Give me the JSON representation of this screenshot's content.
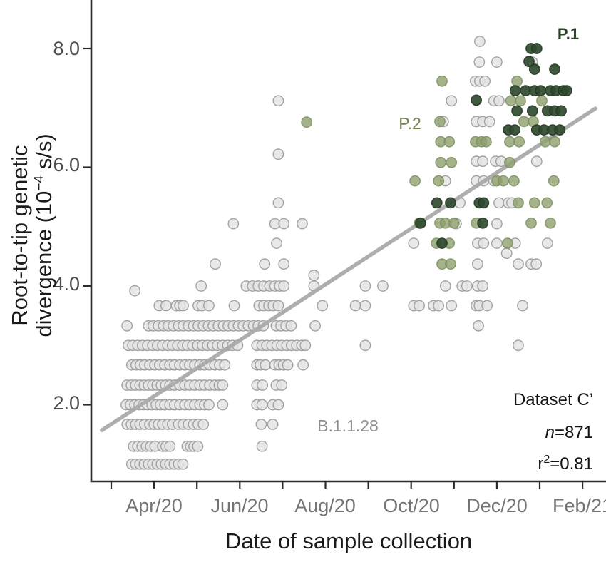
{
  "axes": {
    "x": {
      "label": "Date of sample collection",
      "tick_labels": [
        "Apr/20",
        "Jun/20",
        "Aug/20",
        "Oct/20",
        "Dec/20",
        "Feb/21"
      ]
    },
    "y": {
      "label_line1": "Root-to-tip genetic",
      "label_line2_prefix": "divergence (10",
      "label_line2_sup": "−4",
      "label_line2_suffix": " s/s)",
      "tick_labels": [
        "8.0",
        "6.0",
        "4.0",
        "2.0"
      ]
    }
  },
  "annotations": {
    "p1": "P.1",
    "p2": "P.2",
    "lineage": "B.1.1.28",
    "dataset": "Dataset C’",
    "n_italic": "n",
    "n_rest": "=871",
    "r_base": "r",
    "r_sup": "2",
    "r_rest": "=0.81"
  },
  "chart_data": {
    "type": "scatter",
    "title": "",
    "xlabel": "Date of sample collection",
    "ylabel": "Root-to-tip genetic divergence (10^-4 s/s)",
    "x_unit": "months since Mar/2020 tick (0 = Mar/20, 1 = Apr/20 ... 11 = Feb/21)",
    "y_unit": "10^-4 substitutions/site",
    "xlim": [
      -0.47,
      11.55
    ],
    "ylim": [
      0.72,
      8.82
    ],
    "x_month_ticks": [
      0,
      1,
      2,
      3,
      4,
      5,
      6,
      7,
      8,
      9,
      10,
      11
    ],
    "x_labeled_ticks": [
      1,
      3,
      5,
      7,
      9,
      11
    ],
    "y_ticks": [
      8.0,
      6.0,
      4.0,
      2.0
    ],
    "grid": false,
    "legend": "inline text labels (P.1, P.2, B.1.1.28)",
    "stats": {
      "dataset": "Dataset C'",
      "n": 871,
      "r2": 0.81
    },
    "trend_line": {
      "x1": -0.22,
      "v1": 1.57,
      "x2": 11.3,
      "v2": 6.99,
      "color": "#aaaaaa"
    },
    "series": [
      {
        "name": "B.1.1.28",
        "marker": "open-circle",
        "fill": "#e4e4e4",
        "stroke": "#999999",
        "fill_opacity": 0.85,
        "stroke_opacity": 0.9,
        "bands": [
          {
            "v": 1.0,
            "m": [
              0.48,
              0.57,
              0.67,
              0.77,
              0.87,
              0.97,
              1.07,
              1.17,
              1.27,
              1.37,
              1.47,
              1.57,
              1.67
            ]
          },
          {
            "v": 1.3,
            "m": [
              0.52,
              0.62,
              0.72,
              0.82,
              0.92,
              1.02,
              1.2,
              1.28,
              1.37,
              1.77,
              1.85,
              1.93,
              2.02,
              3.52
            ]
          },
          {
            "v": 1.67,
            "m": [
              0.37,
              0.47,
              0.57,
              0.67,
              0.78,
              0.9,
              1.0,
              1.1,
              1.2,
              1.32,
              1.43,
              1.57,
              1.68,
              1.8,
              1.92,
              2.03,
              2.15,
              3.5,
              3.77
            ]
          },
          {
            "v": 2.0,
            "m": [
              0.35,
              0.45,
              0.55,
              0.65,
              0.75,
              0.85,
              0.95,
              1.05,
              1.15,
              1.25,
              1.37,
              1.48,
              1.6,
              1.72,
              1.83,
              1.95,
              2.07,
              2.18,
              2.28,
              2.6,
              3.4,
              3.52,
              3.77,
              3.9
            ]
          },
          {
            "v": 2.33,
            "m": [
              0.37,
              0.47,
              0.57,
              0.67,
              0.77,
              0.87,
              0.97,
              1.07,
              1.17,
              1.27,
              1.37,
              1.48,
              1.6,
              1.72,
              1.83,
              1.95,
              2.07,
              2.18,
              2.3,
              2.42,
              2.52,
              2.6,
              3.4,
              3.53,
              3.85,
              3.98
            ]
          },
          {
            "v": 2.67,
            "m": [
              0.48,
              0.58,
              0.68,
              0.78,
              0.9,
              1.02,
              1.13,
              1.25,
              1.37,
              1.48,
              1.6,
              1.72,
              1.83,
              1.95,
              2.07,
              2.18,
              2.3,
              2.42,
              2.53,
              2.65,
              3.4,
              3.48,
              3.6,
              3.82,
              3.92,
              4.02,
              4.12,
              4.48
            ]
          },
          {
            "v": 3.0,
            "m": [
              0.4,
              0.5,
              0.62,
              0.73,
              0.85,
              0.97,
              1.08,
              1.2,
              1.32,
              1.43,
              1.55,
              1.67,
              1.78,
              1.9,
              2.02,
              2.13,
              2.25,
              2.37,
              2.48,
              2.6,
              2.72,
              2.83,
              2.95,
              3.4,
              3.52,
              3.63,
              3.75,
              3.87,
              3.98,
              4.1,
              4.21,
              4.33,
              4.45,
              4.53,
              5.93,
              9.5
            ]
          },
          {
            "v": 3.33,
            "m": [
              0.37,
              0.87,
              0.98,
              1.1,
              1.22,
              1.33,
              1.45,
              1.57,
              1.68,
              1.8,
              1.92,
              2.03,
              2.15,
              2.27,
              2.38,
              2.5,
              2.62,
              2.73,
              2.85,
              2.97,
              3.08,
              3.2,
              3.32,
              3.43,
              3.55,
              3.85,
              3.96,
              4.08,
              4.2,
              4.76,
              8.57
            ]
          },
          {
            "v": 3.67,
            "m": [
              1.12,
              1.28,
              1.52,
              1.6,
              1.68,
              2.03,
              2.12,
              2.28,
              2.87,
              3.45,
              3.56,
              3.68,
              3.78,
              3.9,
              4.93,
              5.7,
              5.93,
              7.06,
              7.19,
              7.52,
              7.64,
              7.94,
              8.52,
              8.59,
              8.77,
              9.6
            ]
          },
          {
            "v": 3.92,
            "m": [
              0.55
            ]
          },
          {
            "v": 4.0,
            "m": [
              2.1,
              3.15,
              3.3,
              3.43,
              3.56,
              3.7,
              3.82,
              3.93,
              4.03,
              4.73,
              5.93,
              6.34,
              7.8,
              8.19,
              8.3,
              8.55,
              8.67
            ]
          },
          {
            "v": 4.18,
            "m": [
              4.73
            ]
          },
          {
            "v": 4.37,
            "m": [
              2.43,
              3.58,
              4.03,
              8.55,
              9.5,
              9.8,
              9.92
            ]
          },
          {
            "v": 4.55,
            "m": [
              9.23
            ]
          },
          {
            "v": 4.72,
            "m": [
              3.86,
              7.06,
              8.55,
              8.69,
              9.0,
              9.43,
              10.18
            ]
          },
          {
            "v": 5.05,
            "m": [
              2.85,
              3.82,
              4.03,
              4.46,
              8.05,
              9.0
            ]
          },
          {
            "v": 5.4,
            "m": [
              3.9,
              8.14,
              9.05,
              9.27,
              9.35
            ]
          },
          {
            "v": 5.77,
            "m": [
              7.8,
              8.52,
              8.69,
              8.93
            ]
          },
          {
            "v": 6.1,
            "m": [
              8.52,
              8.67,
              8.97,
              9.1,
              9.93
            ]
          },
          {
            "v": 6.22,
            "m": [
              3.9
            ]
          },
          {
            "v": 6.77,
            "m": [
              7.75,
              8.52,
              8.67,
              8.83
            ]
          },
          {
            "v": 7.12,
            "m": [
              3.9,
              7.94,
              8.93,
              9.05
            ]
          },
          {
            "v": 7.45,
            "m": [
              8.5,
              8.6,
              8.72
            ]
          },
          {
            "v": 7.77,
            "m": [
              8.59,
              9.0,
              9.83
            ]
          },
          {
            "v": 8.12,
            "m": [
              8.6
            ]
          }
        ]
      },
      {
        "name": "P.2",
        "marker": "filled-circle",
        "fill": "#8fa06e",
        "stroke": "#79895a",
        "fill_opacity": 0.8,
        "stroke_opacity": 0.8,
        "bands": [
          {
            "v": 4.37,
            "m": [
              7.72,
              7.92
            ]
          },
          {
            "v": 4.72,
            "m": [
              7.59,
              7.89,
              9.25
            ]
          },
          {
            "v": 5.06,
            "m": [
              7.19,
              7.67,
              7.8,
              8.0,
              8.52,
              9.8,
              10.25
            ]
          },
          {
            "v": 5.4,
            "m": [
              9.5,
              9.88,
              10.17
            ]
          },
          {
            "v": 5.77,
            "m": [
              7.09,
              7.64,
              9.0,
              9.15,
              9.4,
              10.33
            ]
          },
          {
            "v": 6.08,
            "m": [
              7.69,
              7.94,
              9.3
            ]
          },
          {
            "v": 6.43,
            "m": [
              7.69,
              7.89,
              8.5,
              8.64,
              8.75,
              9.3,
              9.52,
              10.13,
              10.35
            ]
          },
          {
            "v": 6.76,
            "m": [
              4.56
            ]
          },
          {
            "v": 6.77,
            "m": [
              7.67,
              9.63,
              9.85
            ]
          },
          {
            "v": 7.12,
            "m": [
              9.33,
              9.55,
              10.05
            ]
          },
          {
            "v": 7.45,
            "m": [
              7.72,
              9.47
            ]
          }
        ]
      },
      {
        "name": "P.1",
        "marker": "filled-circle",
        "fill": "#2f4a2f",
        "stroke": "#24391f",
        "fill_opacity": 0.92,
        "stroke_opacity": 0.9,
        "bands": [
          {
            "v": 4.72,
            "m": [
              7.72
            ]
          },
          {
            "v": 5.06,
            "m": [
              7.22,
              8.67
            ]
          },
          {
            "v": 5.4,
            "m": [
              7.6,
              7.92,
              8.59,
              8.69
            ]
          },
          {
            "v": 6.63,
            "m": [
              9.27,
              9.42,
              9.93,
              10.1,
              10.3,
              10.47
            ]
          },
          {
            "v": 6.95,
            "m": [
              9.47,
              9.83,
              10.18,
              10.35,
              10.5
            ]
          },
          {
            "v": 7.13,
            "m": [
              8.52
            ]
          },
          {
            "v": 7.29,
            "m": [
              9.43,
              9.67,
              9.88,
              10.02,
              10.25,
              10.38,
              10.55,
              10.63
            ]
          },
          {
            "v": 7.65,
            "m": [
              9.88,
              10.35
            ]
          },
          {
            "v": 7.78,
            "m": [
              9.75
            ]
          },
          {
            "v": 8.0,
            "m": [
              9.8,
              9.93
            ]
          }
        ]
      }
    ],
    "text_annotations": [
      {
        "text": "P.1",
        "x_m": 10.67,
        "v": 8.22,
        "color": "#2c452a",
        "bold": true
      },
      {
        "text": "P.2",
        "x_m": 6.97,
        "v": 6.71,
        "color": "#74834d",
        "bold": false
      },
      {
        "text": "B.1.1.28",
        "x_m": 5.52,
        "v": 1.61,
        "color": "#8f8f8f",
        "bold": false
      },
      {
        "text": "Dataset C' / n=871 / r2=0.81",
        "x_m": 11.25,
        "v": 2.0,
        "color": "#141414",
        "bold": false
      }
    ]
  }
}
